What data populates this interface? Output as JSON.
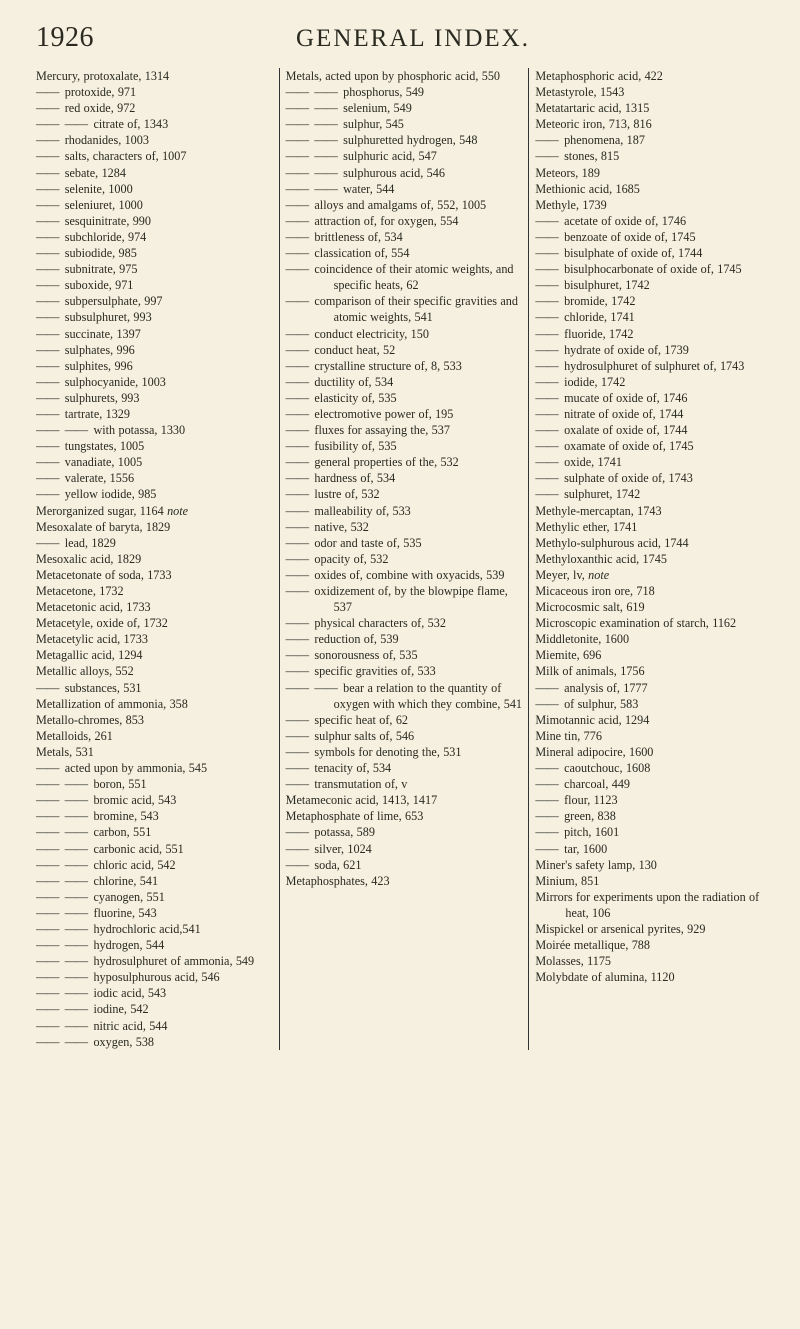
{
  "page_number": "1926",
  "title": "GENERAL INDEX.",
  "columns": [
    [
      {
        "t": "head",
        "text": "Mercury, protoxalate, 1314"
      },
      {
        "t": "sub",
        "dash": 1,
        "text": "protoxide, 971"
      },
      {
        "t": "sub",
        "dash": 1,
        "text": "red oxide, 972"
      },
      {
        "t": "sub",
        "dash": 2,
        "text": "citrate of, 1343"
      },
      {
        "t": "sub",
        "dash": 1,
        "text": "rhodanides, 1003"
      },
      {
        "t": "sub",
        "dash": 1,
        "text": "salts, characters of, 1007"
      },
      {
        "t": "sub",
        "dash": 1,
        "text": "sebate, 1284"
      },
      {
        "t": "sub",
        "dash": 1,
        "text": "selenite, 1000"
      },
      {
        "t": "sub",
        "dash": 1,
        "text": "seleniuret, 1000"
      },
      {
        "t": "sub",
        "dash": 1,
        "text": "sesquinitrate, 990"
      },
      {
        "t": "sub",
        "dash": 1,
        "text": "subchloride, 974"
      },
      {
        "t": "sub",
        "dash": 1,
        "text": "subiodide, 985"
      },
      {
        "t": "sub",
        "dash": 1,
        "text": "subnitrate, 975"
      },
      {
        "t": "sub",
        "dash": 1,
        "text": "suboxide, 971"
      },
      {
        "t": "sub",
        "dash": 1,
        "text": "subpersulphate, 997"
      },
      {
        "t": "sub",
        "dash": 1,
        "text": "subsulphuret, 993"
      },
      {
        "t": "sub",
        "dash": 1,
        "text": "succinate, 1397"
      },
      {
        "t": "sub",
        "dash": 1,
        "text": "sulphates, 996"
      },
      {
        "t": "sub",
        "dash": 1,
        "text": "sulphites, 996"
      },
      {
        "t": "sub",
        "dash": 1,
        "text": "sulphocyanide, 1003"
      },
      {
        "t": "sub",
        "dash": 1,
        "text": "sulphurets, 993"
      },
      {
        "t": "sub",
        "dash": 1,
        "text": "tartrate, 1329"
      },
      {
        "t": "sub",
        "dash": 2,
        "text": "with potassa, 1330"
      },
      {
        "t": "sub",
        "dash": 1,
        "text": "tungstates, 1005"
      },
      {
        "t": "sub",
        "dash": 1,
        "text": "vanadiate, 1005"
      },
      {
        "t": "sub",
        "dash": 1,
        "text": "valerate, 1556"
      },
      {
        "t": "sub",
        "dash": 1,
        "text": "yellow iodide, 985"
      },
      {
        "t": "head",
        "text": "Merorganized sugar, 1164 note",
        "ital": "note"
      },
      {
        "t": "head",
        "text": "Mesoxalate of baryta, 1829"
      },
      {
        "t": "sub",
        "dash": 1,
        "text": "lead, 1829"
      },
      {
        "t": "head",
        "text": "Mesoxalic acid, 1829"
      },
      {
        "t": "head",
        "text": "Metacetonate of soda, 1733"
      },
      {
        "t": "head",
        "text": "Metacetone, 1732"
      },
      {
        "t": "head",
        "text": "Metacetonic acid, 1733"
      },
      {
        "t": "head",
        "text": "Metacetyle, oxide of, 1732"
      },
      {
        "t": "head",
        "text": "Metacetylic acid, 1733"
      },
      {
        "t": "head",
        "text": "Metagallic acid, 1294"
      },
      {
        "t": "head",
        "text": "Metallic alloys, 552"
      },
      {
        "t": "sub",
        "dash": 1,
        "text": "substances, 531"
      },
      {
        "t": "head",
        "text": "Metallization of ammonia, 358"
      },
      {
        "t": "head",
        "text": "Metallo-chromes, 853"
      },
      {
        "t": "head",
        "text": "Metalloids, 261"
      },
      {
        "t": "head",
        "text": "Metals, 531"
      },
      {
        "t": "sub",
        "dash": 1,
        "text": "acted upon by ammonia, 545"
      },
      {
        "t": "sub",
        "dash": 2,
        "text": "boron, 551"
      },
      {
        "t": "sub",
        "dash": 2,
        "text": "bromic acid, 543"
      },
      {
        "t": "sub",
        "dash": 2,
        "text": "bromine, 543"
      },
      {
        "t": "sub",
        "dash": 2,
        "text": "carbon, 551"
      },
      {
        "t": "sub",
        "dash": 2,
        "text": "carbonic acid, 551"
      },
      {
        "t": "sub",
        "dash": 2,
        "text": "chloric acid, 542"
      },
      {
        "t": "sub",
        "dash": 2,
        "text": "chlorine, 541"
      },
      {
        "t": "sub",
        "dash": 2,
        "text": "cyanogen, 551"
      },
      {
        "t": "sub",
        "dash": 2,
        "text": "fluorine, 543"
      },
      {
        "t": "sub",
        "dash": 2,
        "text": "hydrochloric acid,541"
      },
      {
        "t": "sub",
        "dash": 2,
        "text": "hydrogen, 544"
      },
      {
        "t": "sub",
        "dash": 2,
        "text": "hydrosulphuret of ammonia, 549"
      },
      {
        "t": "sub",
        "dash": 2,
        "text": "hyposulphurous acid, 546"
      },
      {
        "t": "sub",
        "dash": 2,
        "text": "iodic acid, 543"
      },
      {
        "t": "sub",
        "dash": 2,
        "text": "iodine, 542"
      },
      {
        "t": "sub",
        "dash": 2,
        "text": "nitric acid, 544"
      },
      {
        "t": "sub",
        "dash": 2,
        "text": "oxygen, 538"
      }
    ],
    [
      {
        "t": "head",
        "text": "Metals, acted upon by phosphoric acid, 550"
      },
      {
        "t": "sub",
        "dash": 2,
        "text": "phosphorus, 549"
      },
      {
        "t": "sub",
        "dash": 2,
        "text": "selenium, 549"
      },
      {
        "t": "sub",
        "dash": 2,
        "text": "sulphur, 545"
      },
      {
        "t": "sub",
        "dash": 2,
        "text": "sulphuretted hydrogen, 548"
      },
      {
        "t": "sub",
        "dash": 2,
        "text": "sulphuric acid, 547"
      },
      {
        "t": "sub",
        "dash": 2,
        "text": "sulphurous acid, 546"
      },
      {
        "t": "sub",
        "dash": 2,
        "text": "water, 544"
      },
      {
        "t": "sub",
        "dash": 1,
        "text": "alloys and amalgams of, 552, 1005"
      },
      {
        "t": "sub",
        "dash": 1,
        "text": "attraction of, for oxygen, 554"
      },
      {
        "t": "sub",
        "dash": 1,
        "text": "brittleness of, 534"
      },
      {
        "t": "sub",
        "dash": 1,
        "text": "classication of, 554"
      },
      {
        "t": "sub",
        "dash": 1,
        "text": "coincidence of their atomic weights, and specific heats, 62"
      },
      {
        "t": "sub",
        "dash": 1,
        "text": "comparison of their specific gravities and atomic weights, 541"
      },
      {
        "t": "sub",
        "dash": 1,
        "text": "conduct electricity, 150"
      },
      {
        "t": "sub",
        "dash": 1,
        "text": "conduct heat, 52"
      },
      {
        "t": "sub",
        "dash": 1,
        "text": "crystalline structure of, 8, 533"
      },
      {
        "t": "sub",
        "dash": 1,
        "text": "ductility of, 534"
      },
      {
        "t": "sub",
        "dash": 1,
        "text": "elasticity of, 535"
      },
      {
        "t": "sub",
        "dash": 1,
        "text": "electromotive power of, 195"
      },
      {
        "t": "sub",
        "dash": 1,
        "text": "fluxes for assaying the, 537"
      },
      {
        "t": "sub",
        "dash": 1,
        "text": "fusibility of, 535"
      },
      {
        "t": "sub",
        "dash": 1,
        "text": "general properties of the, 532"
      },
      {
        "t": "sub",
        "dash": 1,
        "text": "hardness of, 534"
      },
      {
        "t": "sub",
        "dash": 1,
        "text": "lustre of, 532"
      },
      {
        "t": "sub",
        "dash": 1,
        "text": "malleability of, 533"
      },
      {
        "t": "sub",
        "dash": 1,
        "text": "native, 532"
      },
      {
        "t": "sub",
        "dash": 1,
        "text": "odor and taste of, 535"
      },
      {
        "t": "sub",
        "dash": 1,
        "text": "opacity of, 532"
      },
      {
        "t": "sub",
        "dash": 1,
        "text": "oxides of, combine with oxyacids, 539"
      },
      {
        "t": "sub",
        "dash": 1,
        "text": "oxidizement of, by the blowpipe flame, 537"
      },
      {
        "t": "sub",
        "dash": 1,
        "text": "physical characters of, 532"
      },
      {
        "t": "sub",
        "dash": 1,
        "text": "reduction of, 539"
      },
      {
        "t": "sub",
        "dash": 1,
        "text": "sonorousness of, 535"
      },
      {
        "t": "sub",
        "dash": 1,
        "text": "specific gravities of, 533"
      },
      {
        "t": "sub",
        "dash": 2,
        "text": "bear a relation to the quantity of oxygen with which they combine, 541"
      },
      {
        "t": "sub",
        "dash": 1,
        "text": "specific heat of, 62"
      },
      {
        "t": "sub",
        "dash": 1,
        "text": "sulphur salts of, 546"
      },
      {
        "t": "sub",
        "dash": 1,
        "text": "symbols for denoting the, 531"
      },
      {
        "t": "sub",
        "dash": 1,
        "text": "tenacity of, 534"
      },
      {
        "t": "sub",
        "dash": 1,
        "text": "transmutation of, v"
      },
      {
        "t": "head",
        "text": "Metameconic acid, 1413, 1417"
      },
      {
        "t": "head",
        "text": "Metaphosphate of lime, 653"
      },
      {
        "t": "sub",
        "dash": 1,
        "text": "potassa, 589"
      },
      {
        "t": "sub",
        "dash": 1,
        "text": "silver, 1024"
      },
      {
        "t": "sub",
        "dash": 1,
        "text": "soda, 621"
      },
      {
        "t": "head",
        "text": "Metaphosphates, 423"
      }
    ],
    [
      {
        "t": "head",
        "text": "Metaphosphoric acid, 422"
      },
      {
        "t": "head",
        "text": "Metastyrole, 1543"
      },
      {
        "t": "head",
        "text": "Metatartaric acid, 1315"
      },
      {
        "t": "head",
        "text": "Meteoric iron, 713, 816"
      },
      {
        "t": "sub",
        "dash": 1,
        "text": "phenomena, 187"
      },
      {
        "t": "sub",
        "dash": 1,
        "text": "stones, 815"
      },
      {
        "t": "head",
        "text": "Meteors, 189"
      },
      {
        "t": "head",
        "text": "Methionic acid, 1685"
      },
      {
        "t": "head",
        "text": "Methyle, 1739"
      },
      {
        "t": "sub",
        "dash": 1,
        "text": "acetate of oxide of, 1746"
      },
      {
        "t": "sub",
        "dash": 1,
        "text": "benzoate of oxide of, 1745"
      },
      {
        "t": "sub",
        "dash": 1,
        "text": "bisulphate of oxide of, 1744"
      },
      {
        "t": "sub",
        "dash": 1,
        "text": "bisulphocarbonate of oxide of, 1745"
      },
      {
        "t": "sub",
        "dash": 1,
        "text": "bisulphuret, 1742"
      },
      {
        "t": "sub",
        "dash": 1,
        "text": "bromide, 1742"
      },
      {
        "t": "sub",
        "dash": 1,
        "text": "chloride, 1741"
      },
      {
        "t": "sub",
        "dash": 1,
        "text": "fluoride, 1742"
      },
      {
        "t": "sub",
        "dash": 1,
        "text": "hydrate of oxide of, 1739"
      },
      {
        "t": "sub",
        "dash": 1,
        "text": "hydrosulphuret of sulphuret of, 1743"
      },
      {
        "t": "sub",
        "dash": 1,
        "text": "iodide, 1742"
      },
      {
        "t": "sub",
        "dash": 1,
        "text": "mucate of oxide of, 1746"
      },
      {
        "t": "sub",
        "dash": 1,
        "text": "nitrate of oxide of, 1744"
      },
      {
        "t": "sub",
        "dash": 1,
        "text": "oxalate of oxide of, 1744"
      },
      {
        "t": "sub",
        "dash": 1,
        "text": "oxamate of oxide of, 1745"
      },
      {
        "t": "sub",
        "dash": 1,
        "text": "oxide, 1741"
      },
      {
        "t": "sub",
        "dash": 1,
        "text": "sulphate of oxide of, 1743"
      },
      {
        "t": "sub",
        "dash": 1,
        "text": "sulphuret, 1742"
      },
      {
        "t": "head",
        "text": "Methyle-mercaptan, 1743"
      },
      {
        "t": "head",
        "text": "Methylic ether, 1741"
      },
      {
        "t": "head",
        "text": "Methylo-sulphurous acid, 1744"
      },
      {
        "t": "head",
        "text": "Methyloxanthic acid, 1745"
      },
      {
        "t": "head",
        "text": "Meyer, lv, note",
        "ital": "note"
      },
      {
        "t": "head",
        "text": "Micaceous iron ore, 718"
      },
      {
        "t": "head",
        "text": "Microcosmic salt, 619"
      },
      {
        "t": "head",
        "text": "Microscopic examination of starch, 1162"
      },
      {
        "t": "head",
        "text": "Middletonite, 1600"
      },
      {
        "t": "head",
        "text": "Miemite, 696"
      },
      {
        "t": "head",
        "text": "Milk of animals, 1756"
      },
      {
        "t": "sub",
        "dash": 1,
        "text": "analysis of, 1777"
      },
      {
        "t": "sub",
        "dash": 1,
        "text": "of sulphur, 583"
      },
      {
        "t": "head",
        "text": "Mimotannic acid, 1294"
      },
      {
        "t": "head",
        "text": "Mine tin, 776"
      },
      {
        "t": "head",
        "text": "Mineral adipocire, 1600"
      },
      {
        "t": "sub",
        "dash": 1,
        "text": "caoutchouc, 1608"
      },
      {
        "t": "sub",
        "dash": 1,
        "text": "charcoal, 449"
      },
      {
        "t": "sub",
        "dash": 1,
        "text": "flour, 1123"
      },
      {
        "t": "sub",
        "dash": 1,
        "text": "green, 838"
      },
      {
        "t": "sub",
        "dash": 1,
        "text": "pitch, 1601"
      },
      {
        "t": "sub",
        "dash": 1,
        "text": "tar, 1600"
      },
      {
        "t": "head",
        "text": "Miner's safety lamp, 130"
      },
      {
        "t": "head",
        "text": "Minium, 851"
      },
      {
        "t": "head",
        "text": "Mirrors for experiments upon the radiation of heat, 106"
      },
      {
        "t": "head",
        "text": "Mispickel or arsenical pyrites, 929"
      },
      {
        "t": "head",
        "text": "Moirée metallique, 788"
      },
      {
        "t": "head",
        "text": "Molasses, 1175"
      },
      {
        "t": "head",
        "text": "Molybdate of alumina, 1120"
      }
    ]
  ]
}
